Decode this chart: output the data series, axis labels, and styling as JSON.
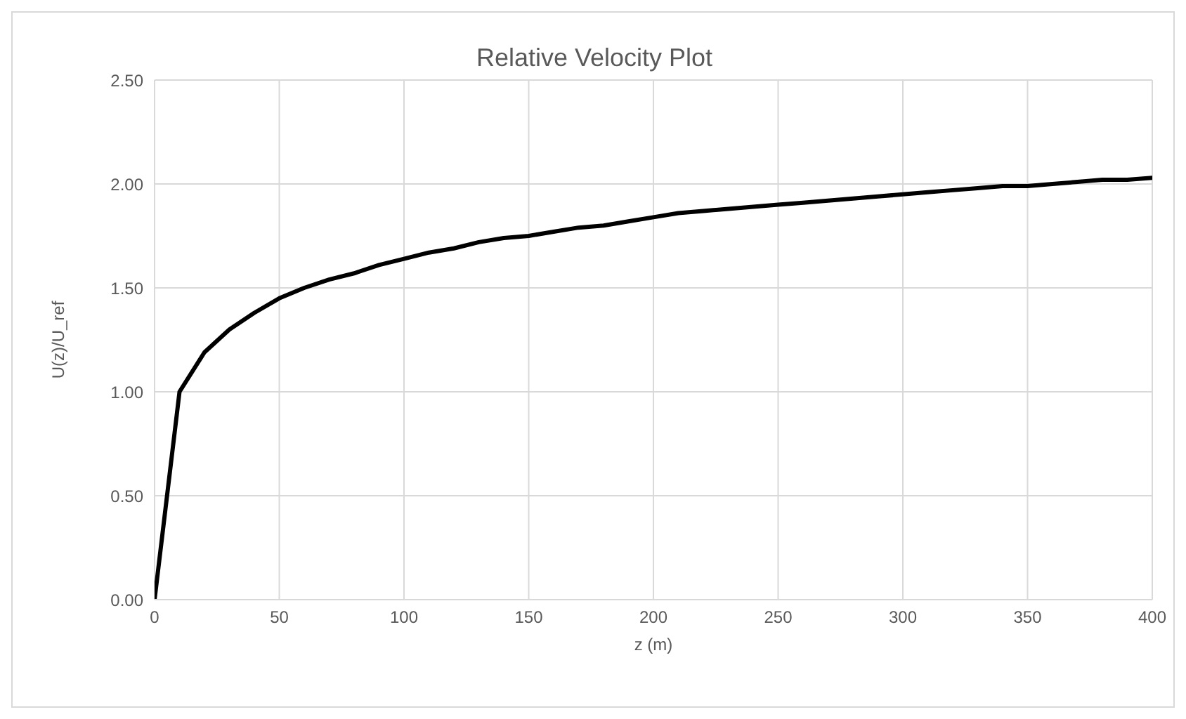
{
  "chart_data": {
    "type": "line",
    "title": "Relative Velocity Plot",
    "xlabel": "z (m)",
    "ylabel": "U(z)/U_ref",
    "x": [
      0,
      10,
      20,
      30,
      40,
      50,
      60,
      70,
      80,
      90,
      100,
      110,
      120,
      130,
      140,
      150,
      160,
      170,
      180,
      190,
      200,
      210,
      220,
      230,
      240,
      250,
      260,
      270,
      280,
      290,
      300,
      310,
      320,
      330,
      340,
      350,
      360,
      370,
      380,
      390,
      400
    ],
    "series": [
      {
        "color": "#000000",
        "values": [
          0,
          1.0,
          1.19,
          1.3,
          1.38,
          1.45,
          1.5,
          1.54,
          1.57,
          1.61,
          1.64,
          1.67,
          1.69,
          1.72,
          1.74,
          1.75,
          1.77,
          1.79,
          1.8,
          1.82,
          1.84,
          1.86,
          1.87,
          1.88,
          1.89,
          1.9,
          1.91,
          1.92,
          1.93,
          1.94,
          1.95,
          1.96,
          1.97,
          1.98,
          1.99,
          1.99,
          2.0,
          2.01,
          2.02,
          2.02,
          2.03
        ]
      }
    ],
    "xlim": [
      0,
      400
    ],
    "xticks": [
      0,
      50,
      100,
      150,
      200,
      250,
      300,
      350,
      400
    ],
    "ylim": [
      0,
      2.5
    ],
    "yticks": [
      {
        "value": 0,
        "label": "0.00"
      },
      {
        "value": 0.5,
        "label": "0.50"
      },
      {
        "value": 1,
        "label": "1.00"
      },
      {
        "value": 1.5,
        "label": "1.50"
      },
      {
        "value": 2,
        "label": "2.00"
      },
      {
        "value": 2.5,
        "label": "2.50"
      }
    ],
    "grid": true,
    "legend": false,
    "marker": "none",
    "line_style": "solid"
  }
}
